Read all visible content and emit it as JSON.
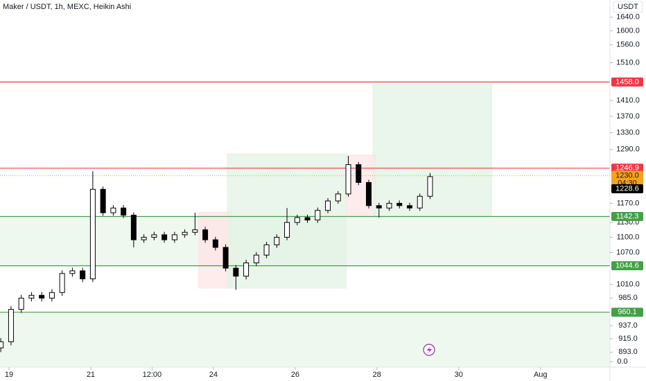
{
  "chart_data": {
    "type": "candlestick",
    "title": "Maker / USDT, 1h, MEXC, Heikin Ashi",
    "y_axis_label": "USDT",
    "log_scale": true,
    "grid": false,
    "up_color": "#ffffff",
    "down_color": "#000000",
    "x": [
      18.8,
      19.05,
      19.3,
      19.55,
      19.8,
      20.05,
      20.3,
      20.55,
      20.8,
      21.05,
      21.3,
      21.55,
      21.8,
      22.05,
      22.3,
      22.55,
      22.8,
      23.05,
      23.3,
      23.55,
      23.8,
      24.05,
      24.3,
      24.55,
      24.8,
      25.05,
      25.3,
      25.55,
      25.8,
      26.05,
      26.3,
      26.55,
      26.8,
      27.05,
      27.3,
      27.55,
      27.8,
      28.05,
      28.3,
      28.55,
      28.8,
      29.05,
      29.3
    ],
    "open": [
      900,
      910,
      965,
      985,
      990,
      985,
      995,
      1030,
      1035,
      1020,
      1200,
      1150,
      1160,
      1145,
      1095,
      1100,
      1105,
      1095,
      1105,
      1110,
      1115,
      1095,
      1080,
      1040,
      1025,
      1050,
      1065,
      1085,
      1100,
      1130,
      1140,
      1135,
      1155,
      1175,
      1190,
      1255,
      1215,
      1165,
      1160,
      1170,
      1165,
      1160,
      1185
    ],
    "high": [
      916,
      971,
      991,
      996,
      996,
      1001,
      1036,
      1041,
      1041,
      1240,
      1206,
      1166,
      1166,
      1151,
      1106,
      1111,
      1111,
      1111,
      1116,
      1150,
      1121,
      1101,
      1086,
      1046,
      1056,
      1071,
      1091,
      1106,
      1160,
      1146,
      1146,
      1161,
      1181,
      1196,
      1275,
      1261,
      1221,
      1171,
      1176,
      1176,
      1171,
      1191,
      1236
    ],
    "low": [
      893,
      904,
      959,
      979,
      979,
      979,
      989,
      1024,
      1014,
      1014,
      1144,
      1144,
      1139,
      1080,
      1089,
      1094,
      1089,
      1089,
      1099,
      1104,
      1089,
      1074,
      1034,
      1000,
      1019,
      1044,
      1059,
      1079,
      1094,
      1124,
      1129,
      1129,
      1149,
      1169,
      1184,
      1209,
      1159,
      1140,
      1154,
      1159,
      1154,
      1154,
      1179
    ],
    "close": [
      910,
      965,
      985,
      990,
      985,
      995,
      1030,
      1035,
      1020,
      1200,
      1150,
      1160,
      1145,
      1095,
      1100,
      1105,
      1095,
      1105,
      1110,
      1115,
      1095,
      1080,
      1040,
      1025,
      1050,
      1065,
      1085,
      1100,
      1130,
      1140,
      1135,
      1155,
      1175,
      1190,
      1255,
      1215,
      1165,
      1160,
      1170,
      1165,
      1160,
      1185,
      1228
    ],
    "xlim": [
      18.78,
      33.7
    ],
    "xticks": [
      19,
      21,
      {
        "value": 22.5,
        "label": "12:00"
      },
      24,
      26,
      28,
      30,
      {
        "value": 32,
        "label": "Aug"
      }
    ],
    "ylim": [
      869,
      1692
    ],
    "yticks": [
      {
        "value": 1640,
        "label": "1640.0"
      },
      {
        "value": 1600,
        "label": "1600.0"
      },
      {
        "value": 1560,
        "label": "1560.0"
      },
      {
        "value": 1510,
        "label": "1510.0"
      },
      {
        "value": 1410,
        "label": "1410.0"
      },
      {
        "value": 1370,
        "label": "1370.0"
      },
      {
        "value": 1330,
        "label": "1330.0"
      },
      {
        "value": 1290,
        "label": "1290.0"
      },
      {
        "value": 1170,
        "label": "1170.0"
      },
      {
        "value": 1130,
        "label": "1130.0"
      },
      {
        "value": 1100,
        "label": "1100.0"
      },
      {
        "value": 1070,
        "label": "1070.0"
      },
      {
        "value": 1010,
        "label": "1010.0"
      },
      {
        "value": 985,
        "label": "985.0"
      },
      {
        "value": 937,
        "label": "937.0"
      },
      {
        "value": 915,
        "label": "915.0"
      },
      {
        "value": 893,
        "label": "893.0"
      }
    ],
    "levels": [
      {
        "value": 1458,
        "label": "1458.0",
        "color": "#f23645"
      },
      {
        "value": 1246.9,
        "label": "1246.9",
        "color": "#f23645"
      },
      {
        "value": 1142.3,
        "label": "1142.3",
        "color": "#43a047"
      },
      {
        "value": 1044.6,
        "label": "1044.6",
        "color": "#43a047"
      },
      {
        "value": 960.1,
        "label": "960.1",
        "color": "#43a047"
      }
    ],
    "zones": [
      {
        "x": [
          18.78,
          33.7
        ],
        "y": [
          1044.6,
          1142.3
        ],
        "color": "#e8f5e9"
      },
      {
        "x": [
          18.78,
          33.7
        ],
        "y": [
          869,
          960.1
        ],
        "color": "#e8f5e9"
      },
      {
        "x": [
          23.64,
          24.46
        ],
        "y": [
          1003,
          1151
        ],
        "color": "#fde4e6"
      },
      {
        "x": [
          24.34,
          27.25
        ],
        "y": [
          1003,
          1280
        ],
        "color": "#e3f3e4"
      },
      {
        "x": [
          27.25,
          27.97
        ],
        "y": [
          1142,
          1277
        ],
        "color": "#fde4e6"
      },
      {
        "x": [
          27.9,
          30.81
        ],
        "y": [
          1142,
          1453
        ],
        "color": "#e3f3e4"
      }
    ],
    "last_price": {
      "value": 1230,
      "label": "1230.0",
      "countdown": "04:30",
      "color": "#f7a21b"
    },
    "ha_close": {
      "value": 1228.6,
      "label": "1228.6",
      "color": "#000000"
    },
    "volume_axis_tick": {
      "value": 0,
      "label": "0.0"
    }
  }
}
